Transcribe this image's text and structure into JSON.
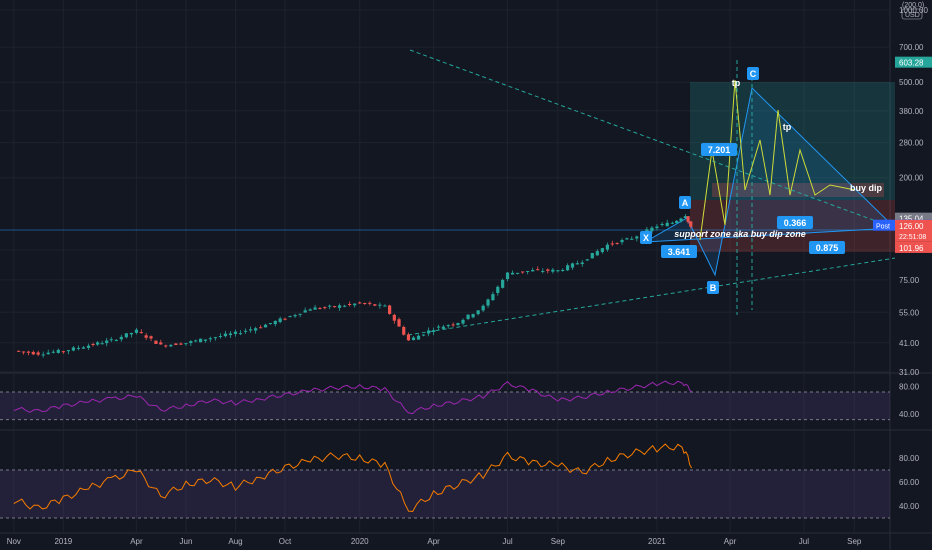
{
  "chart_data": [
    {
      "type": "candlestick",
      "scale": "log",
      "currency": "USD",
      "ylim": [
        31,
        1000
      ],
      "x_tick_labels": [
        "Nov",
        "2019",
        "Apr",
        "Jun",
        "Aug",
        "Oct",
        "2020",
        "Apr",
        "Jul",
        "Sep",
        "2021",
        "Apr",
        "Jul",
        "Sep"
      ],
      "x_tick_dates": [
        "2018-11-01",
        "2019-01-01",
        "2019-04-01",
        "2019-06-01",
        "2019-08-01",
        "2019-10-01",
        "2020-01-01",
        "2020-04-01",
        "2020-07-01",
        "2020-09-01",
        "2021-01-01",
        "2021-04-01",
        "2021-07-01",
        "2021-09-01"
      ],
      "y_ticks": [
        1000,
        700,
        500,
        380,
        280,
        200,
        100,
        75,
        55,
        41,
        31
      ],
      "y_tick_labels": [
        "1000.00",
        "700.00",
        "500.00",
        "380.00",
        "280.00",
        "200.00",
        "",
        "75.00",
        "55.00",
        "41.00",
        "31.00"
      ],
      "scale_label_top": "(200.0)",
      "series": [
        {
          "name": "",
          "x": [
            "2018-11-01",
            "2018-12-01",
            "2019-01-01",
            "2019-02-01",
            "2019-03-01",
            "2019-04-01",
            "2019-05-01",
            "2019-06-01",
            "2019-07-01",
            "2019-08-01",
            "2019-09-01",
            "2019-10-01",
            "2019-11-01",
            "2019-12-01",
            "2020-01-01",
            "2020-02-01",
            "2020-03-01",
            "2020-04-01",
            "2020-05-01",
            "2020-06-01",
            "2020-07-01",
            "2020-08-01",
            "2020-09-01",
            "2020-10-01",
            "2020-11-01",
            "2020-12-01",
            "2021-01-01",
            "2021-01-20",
            "2021-02-05",
            "2021-02-15"
          ],
          "close": [
            38,
            37,
            38,
            40,
            42,
            46,
            40,
            41,
            43,
            45,
            48,
            52,
            57,
            58,
            60,
            58,
            42,
            47,
            50,
            58,
            80,
            82,
            82,
            90,
            105,
            112,
            126,
            130,
            140,
            118
          ]
        }
      ],
      "price_labels": [
        {
          "value": 603.28,
          "text": "603.28",
          "color": "#26a69a"
        },
        {
          "value": 135.04,
          "text": "135.04",
          "color": "#787b86"
        },
        {
          "value": 126.2,
          "text": "126.20",
          "color": "#2962ff",
          "tag": "Post"
        },
        {
          "value": 126.0,
          "text": "126.00",
          "color": "#ef5350",
          "sub": "22:51:08"
        },
        {
          "value": 101.96,
          "text": "101.96",
          "color": "#ef5350"
        }
      ],
      "annotations": [
        {
          "text": "A",
          "color": "#2196f3"
        },
        {
          "text": "B",
          "color": "#2196f3"
        },
        {
          "text": "C",
          "color": "#2196f3"
        },
        {
          "text": "X",
          "color": "#2196f3"
        },
        {
          "text": "7.201",
          "color": "#2196f3"
        },
        {
          "text": "3.641",
          "color": "#2196f3"
        },
        {
          "text": "0.366",
          "color": "#2196f3"
        },
        {
          "text": "0.875",
          "color": "#2196f3"
        },
        {
          "text": "tp",
          "color": "#ffffff"
        },
        {
          "text": "tp",
          "color": "#ffffff"
        },
        {
          "text": "buy dip",
          "color": "#ffffff"
        },
        {
          "text": "support zone aka buy dip zone",
          "color": "#ffffff"
        }
      ],
      "colors": {
        "up": "#26a69a",
        "down": "#ef5350",
        "pattern": "#2196f3",
        "projection": "#cddc39",
        "trendline": "#26a69a"
      }
    },
    {
      "type": "line",
      "y_ticks": [
        80,
        40
      ],
      "y_tick_labels": [
        "80.00",
        "40.00"
      ],
      "ylim": [
        20,
        95
      ],
      "band": [
        32,
        72
      ],
      "color": "#9c27b0",
      "x": [
        "2018-11-01",
        "2018-12-01",
        "2019-01-01",
        "2019-02-01",
        "2019-03-01",
        "2019-04-01",
        "2019-05-01",
        "2019-06-01",
        "2019-07-01",
        "2019-08-01",
        "2019-09-01",
        "2019-10-01",
        "2019-11-01",
        "2019-12-01",
        "2020-01-01",
        "2020-02-01",
        "2020-03-01",
        "2020-04-01",
        "2020-05-01",
        "2020-06-01",
        "2020-07-01",
        "2020-08-01",
        "2020-09-01",
        "2020-10-01",
        "2020-11-01",
        "2020-12-01",
        "2021-01-01",
        "2021-02-01",
        "2021-02-15"
      ],
      "values": [
        48,
        44,
        52,
        58,
        62,
        66,
        46,
        52,
        60,
        56,
        62,
        68,
        74,
        78,
        80,
        76,
        42,
        52,
        58,
        66,
        84,
        74,
        60,
        64,
        72,
        78,
        84,
        86,
        72
      ]
    },
    {
      "type": "line",
      "y_ticks": [
        80,
        60,
        40
      ],
      "y_tick_labels": [
        "80.00",
        "60.00",
        "40.00"
      ],
      "ylim": [
        20,
        100
      ],
      "band": [
        30,
        70
      ],
      "color": "#f57c00",
      "x": [
        "2018-11-01",
        "2018-12-01",
        "2019-01-01",
        "2019-02-01",
        "2019-03-01",
        "2019-04-01",
        "2019-05-01",
        "2019-06-01",
        "2019-07-01",
        "2019-08-01",
        "2019-09-01",
        "2019-10-01",
        "2019-11-01",
        "2019-12-01",
        "2020-01-01",
        "2020-02-01",
        "2020-03-01",
        "2020-04-01",
        "2020-05-01",
        "2020-06-01",
        "2020-07-01",
        "2020-08-01",
        "2020-09-01",
        "2020-10-01",
        "2020-11-01",
        "2020-12-01",
        "2021-01-01",
        "2021-02-01",
        "2021-02-15"
      ],
      "values": [
        45,
        38,
        46,
        55,
        62,
        70,
        48,
        58,
        62,
        56,
        64,
        72,
        78,
        82,
        80,
        74,
        36,
        50,
        58,
        66,
        82,
        76,
        74,
        68,
        78,
        84,
        88,
        90,
        70
      ]
    }
  ]
}
